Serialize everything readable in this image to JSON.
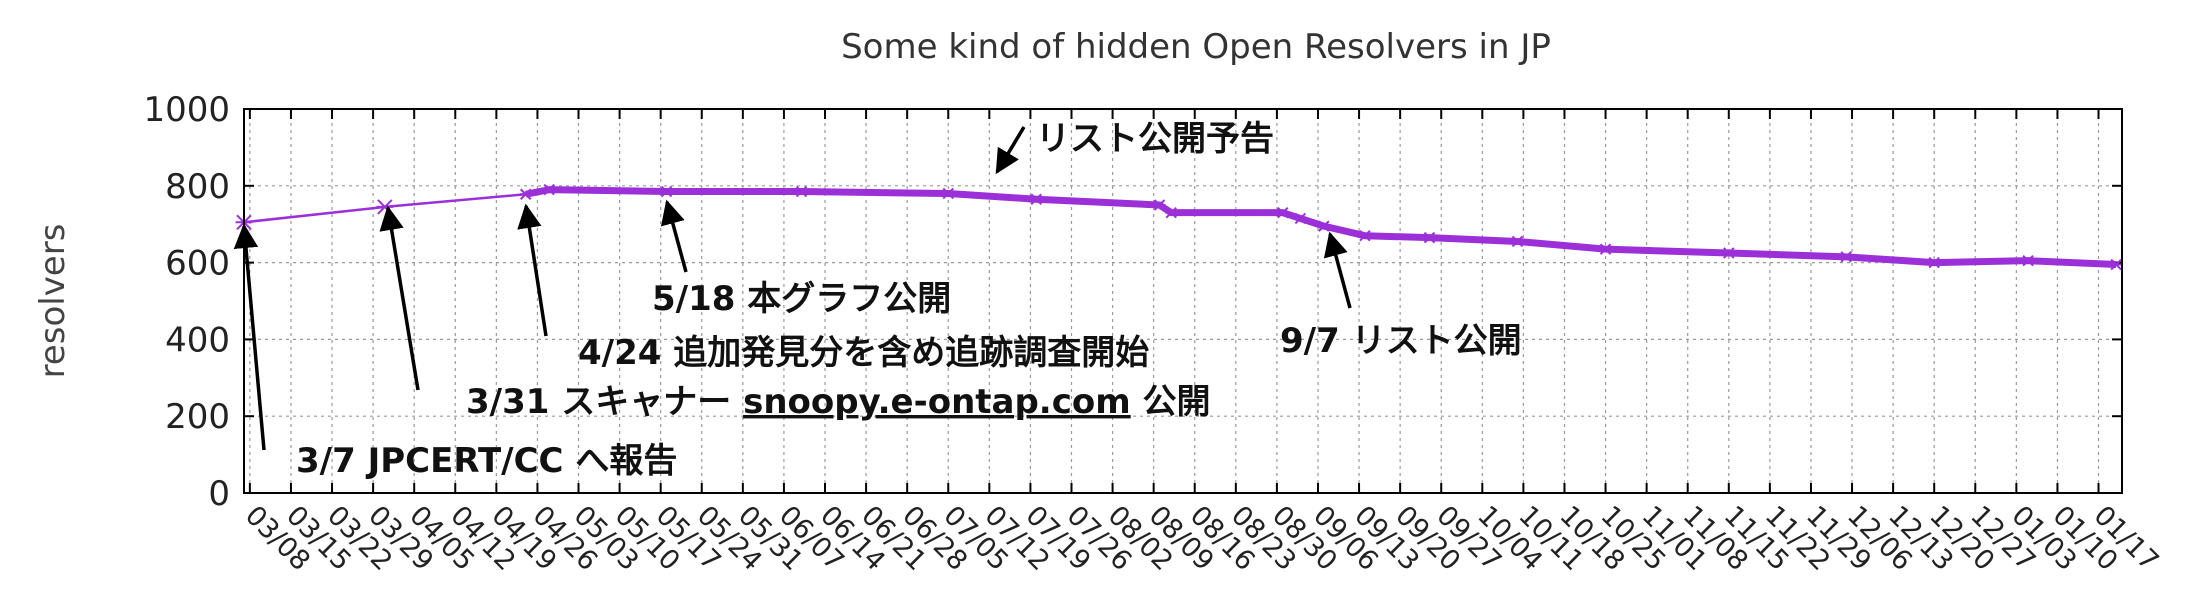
{
  "chart_data": {
    "type": "line",
    "title": "Some kind of hidden Open Resolvers in JP",
    "ylabel": "resolvers",
    "xlabel": "",
    "ylim": [
      0,
      1000
    ],
    "yticks": [
      "0",
      "200",
      "400",
      "600",
      "800",
      "1000"
    ],
    "xlim": [
      "2016-03-07",
      "2017-01-21"
    ],
    "xticks": [
      "03/08",
      "03/15",
      "03/22",
      "03/29",
      "04/05",
      "04/12",
      "04/19",
      "04/26",
      "05/03",
      "05/10",
      "05/17",
      "05/24",
      "05/31",
      "06/07",
      "06/14",
      "06/21",
      "06/28",
      "07/05",
      "07/12",
      "07/19",
      "07/26",
      "08/02",
      "08/09",
      "08/16",
      "08/23",
      "08/30",
      "09/06",
      "09/13",
      "09/20",
      "09/27",
      "10/04",
      "10/11",
      "10/18",
      "10/25",
      "11/01",
      "11/08",
      "11/15",
      "11/22",
      "11/29",
      "12/06",
      "12/13",
      "12/20",
      "12/27",
      "01/03",
      "01/10",
      "01/17"
    ],
    "grid": true,
    "series": [
      {
        "color": "#9b30d9",
        "points": [
          [
            "2016-03-07",
            705
          ],
          [
            "2016-03-31",
            745
          ],
          [
            "2016-04-24",
            778
          ],
          [
            "2016-04-28",
            790
          ],
          [
            "2016-05-18",
            785
          ],
          [
            "2016-06-10",
            785
          ],
          [
            "2016-07-05",
            780
          ],
          [
            "2016-07-20",
            765
          ],
          [
            "2016-08-10",
            750
          ],
          [
            "2016-08-12",
            730
          ],
          [
            "2016-08-31",
            730
          ],
          [
            "2016-09-03",
            715
          ],
          [
            "2016-09-07",
            695
          ],
          [
            "2016-09-14",
            670
          ],
          [
            "2016-09-25",
            665
          ],
          [
            "2016-10-10",
            655
          ],
          [
            "2016-10-25",
            635
          ],
          [
            "2016-11-15",
            625
          ],
          [
            "2016-12-05",
            615
          ],
          [
            "2016-12-20",
            600
          ],
          [
            "2017-01-05",
            605
          ],
          [
            "2017-01-20",
            595
          ]
        ]
      }
    ],
    "annotations": [
      {
        "text": "リスト公開予告",
        "date": "2016-07-05",
        "value": 830
      },
      {
        "text": "5/18 本グラフ公開",
        "date": "2016-05-18",
        "value": 785
      },
      {
        "text": "4/24 追加発見分を含め追跡調査開始",
        "date": "2016-04-24",
        "value": 778
      },
      {
        "text": "9/7 リスト公開",
        "date": "2016-09-07",
        "value": 695
      },
      {
        "text": "3/31 スキャナー ",
        "link": "snoopy.e-ontap.com",
        "suffix": " 公開",
        "date": "2016-03-31",
        "value": 745
      },
      {
        "text": "3/7 JPCERT/CC へ報告",
        "date": "2016-03-07",
        "value": 705
      }
    ]
  }
}
